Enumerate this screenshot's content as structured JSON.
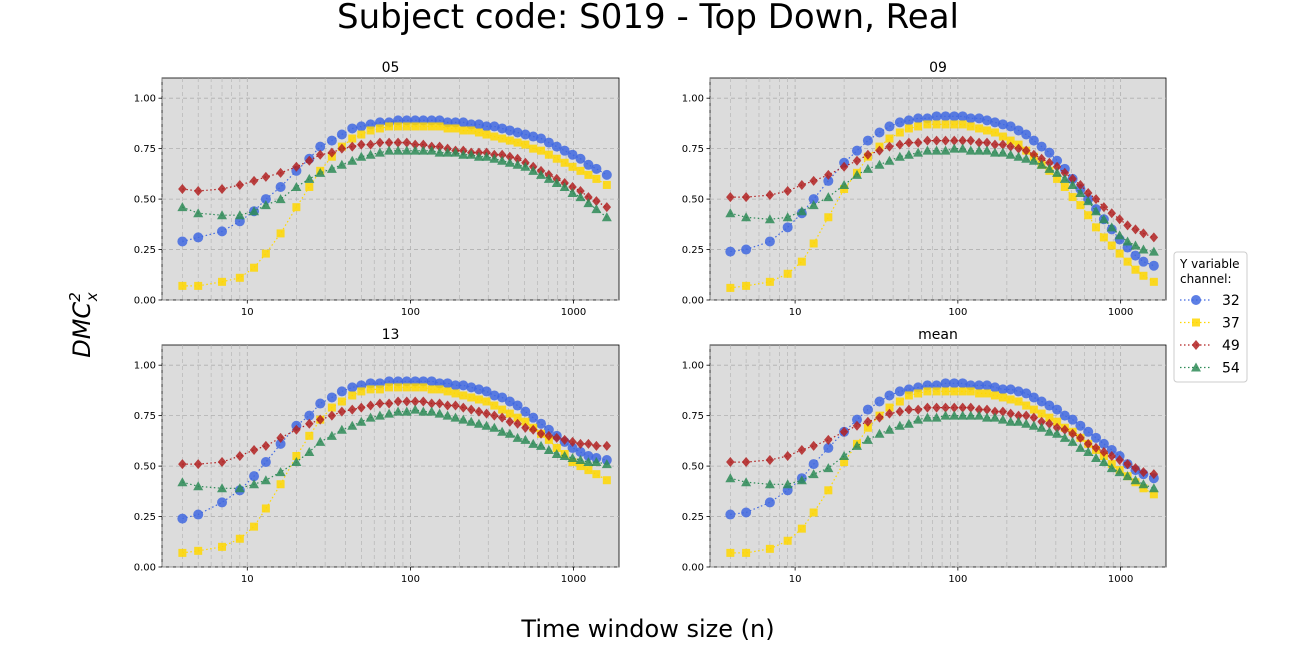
{
  "figure": {
    "title": "Subject code: S019 - Top Down, Real",
    "xlabel": "Time window size (n)",
    "ylabel": "DMC",
    "ylabel_sup": "2",
    "ylabel_sub": "x"
  },
  "legend": {
    "title_line1": "Y variable",
    "title_line2": "channel:",
    "placement": "right-center",
    "entries": [
      {
        "name": "32",
        "color": "#4169e1",
        "marker": "circle"
      },
      {
        "name": "37",
        "color": "#ffd700",
        "marker": "square"
      },
      {
        "name": "49",
        "color": "#b22222",
        "marker": "diamond"
      },
      {
        "name": "54",
        "color": "#2e8b57",
        "marker": "triangle"
      }
    ]
  },
  "chart_data": [
    {
      "type": "line",
      "title": "05",
      "xscale": "log",
      "xlim": [
        3,
        1900
      ],
      "ylim": [
        0,
        1.1
      ],
      "yticks": [
        "0.00",
        "0.25",
        "0.50",
        "0.75",
        "1.00"
      ],
      "xticks": [
        "10",
        "100",
        "1000"
      ],
      "grid": true,
      "x": [
        4,
        5,
        7,
        9,
        11,
        13,
        16,
        20,
        24,
        28,
        33,
        38,
        44,
        50,
        57,
        65,
        74,
        84,
        95,
        107,
        120,
        135,
        151,
        169,
        189,
        211,
        236,
        263,
        293,
        327,
        365,
        407,
        454,
        507,
        566,
        632,
        706,
        789,
        882,
        986,
        1103,
        1234,
        1381,
        1600
      ],
      "series": [
        {
          "name": "32",
          "values": [
            0.29,
            0.31,
            0.34,
            0.39,
            0.44,
            0.5,
            0.56,
            0.64,
            0.7,
            0.76,
            0.79,
            0.82,
            0.85,
            0.86,
            0.87,
            0.88,
            0.88,
            0.89,
            0.89,
            0.89,
            0.89,
            0.89,
            0.89,
            0.88,
            0.88,
            0.88,
            0.87,
            0.87,
            0.86,
            0.86,
            0.85,
            0.84,
            0.83,
            0.82,
            0.81,
            0.8,
            0.78,
            0.76,
            0.74,
            0.72,
            0.7,
            0.67,
            0.65,
            0.62
          ]
        },
        {
          "name": "37",
          "values": [
            0.07,
            0.07,
            0.09,
            0.11,
            0.16,
            0.23,
            0.33,
            0.46,
            0.56,
            0.64,
            0.71,
            0.76,
            0.8,
            0.82,
            0.84,
            0.85,
            0.86,
            0.86,
            0.86,
            0.86,
            0.86,
            0.86,
            0.86,
            0.85,
            0.85,
            0.84,
            0.84,
            0.83,
            0.82,
            0.81,
            0.8,
            0.79,
            0.78,
            0.77,
            0.75,
            0.74,
            0.72,
            0.7,
            0.68,
            0.66,
            0.64,
            0.62,
            0.6,
            0.57
          ]
        },
        {
          "name": "49",
          "values": [
            0.55,
            0.54,
            0.55,
            0.57,
            0.59,
            0.61,
            0.63,
            0.66,
            0.69,
            0.72,
            0.73,
            0.75,
            0.76,
            0.77,
            0.77,
            0.78,
            0.78,
            0.78,
            0.78,
            0.77,
            0.77,
            0.76,
            0.76,
            0.75,
            0.74,
            0.74,
            0.73,
            0.73,
            0.73,
            0.72,
            0.72,
            0.71,
            0.7,
            0.68,
            0.66,
            0.64,
            0.62,
            0.6,
            0.58,
            0.56,
            0.54,
            0.51,
            0.49,
            0.46
          ]
        },
        {
          "name": "54",
          "values": [
            0.46,
            0.43,
            0.42,
            0.42,
            0.44,
            0.47,
            0.5,
            0.56,
            0.6,
            0.63,
            0.65,
            0.67,
            0.69,
            0.71,
            0.72,
            0.73,
            0.74,
            0.74,
            0.74,
            0.74,
            0.74,
            0.74,
            0.73,
            0.73,
            0.73,
            0.72,
            0.72,
            0.71,
            0.71,
            0.7,
            0.69,
            0.68,
            0.67,
            0.66,
            0.64,
            0.62,
            0.6,
            0.58,
            0.56,
            0.53,
            0.51,
            0.48,
            0.45,
            0.41
          ]
        }
      ]
    },
    {
      "type": "line",
      "title": "09",
      "xscale": "log",
      "xlim": [
        3,
        1900
      ],
      "ylim": [
        0,
        1.1
      ],
      "yticks": [
        "0.00",
        "0.25",
        "0.50",
        "0.75",
        "1.00"
      ],
      "xticks": [
        "10",
        "100",
        "1000"
      ],
      "grid": true,
      "x": [
        4,
        5,
        7,
        9,
        11,
        13,
        16,
        20,
        24,
        28,
        33,
        38,
        44,
        50,
        57,
        65,
        74,
        84,
        95,
        107,
        120,
        135,
        151,
        169,
        189,
        211,
        236,
        263,
        293,
        327,
        365,
        407,
        454,
        507,
        566,
        632,
        706,
        789,
        882,
        986,
        1103,
        1234,
        1381,
        1600
      ],
      "series": [
        {
          "name": "32",
          "values": [
            0.24,
            0.25,
            0.29,
            0.36,
            0.43,
            0.5,
            0.59,
            0.68,
            0.74,
            0.79,
            0.83,
            0.86,
            0.88,
            0.89,
            0.9,
            0.9,
            0.91,
            0.91,
            0.91,
            0.91,
            0.9,
            0.9,
            0.89,
            0.88,
            0.87,
            0.86,
            0.84,
            0.82,
            0.79,
            0.76,
            0.73,
            0.69,
            0.65,
            0.6,
            0.55,
            0.5,
            0.45,
            0.4,
            0.35,
            0.3,
            0.26,
            0.22,
            0.19,
            0.17
          ]
        },
        {
          "name": "37",
          "values": [
            0.06,
            0.07,
            0.09,
            0.13,
            0.19,
            0.28,
            0.41,
            0.55,
            0.63,
            0.71,
            0.76,
            0.8,
            0.83,
            0.85,
            0.86,
            0.87,
            0.87,
            0.87,
            0.87,
            0.87,
            0.86,
            0.85,
            0.84,
            0.83,
            0.81,
            0.79,
            0.77,
            0.74,
            0.71,
            0.67,
            0.64,
            0.6,
            0.56,
            0.51,
            0.47,
            0.42,
            0.36,
            0.31,
            0.27,
            0.23,
            0.19,
            0.15,
            0.12,
            0.09
          ]
        },
        {
          "name": "49",
          "values": [
            0.51,
            0.51,
            0.52,
            0.54,
            0.57,
            0.59,
            0.62,
            0.66,
            0.69,
            0.72,
            0.74,
            0.76,
            0.77,
            0.78,
            0.78,
            0.79,
            0.79,
            0.79,
            0.79,
            0.79,
            0.79,
            0.78,
            0.78,
            0.77,
            0.77,
            0.76,
            0.75,
            0.74,
            0.72,
            0.7,
            0.68,
            0.66,
            0.63,
            0.6,
            0.57,
            0.53,
            0.5,
            0.46,
            0.43,
            0.4,
            0.37,
            0.35,
            0.33,
            0.31
          ]
        },
        {
          "name": "54",
          "values": [
            0.43,
            0.41,
            0.4,
            0.41,
            0.44,
            0.47,
            0.51,
            0.57,
            0.62,
            0.65,
            0.67,
            0.69,
            0.71,
            0.72,
            0.73,
            0.74,
            0.74,
            0.74,
            0.75,
            0.75,
            0.74,
            0.74,
            0.74,
            0.73,
            0.73,
            0.72,
            0.71,
            0.7,
            0.69,
            0.67,
            0.65,
            0.63,
            0.6,
            0.57,
            0.53,
            0.49,
            0.44,
            0.4,
            0.36,
            0.32,
            0.29,
            0.27,
            0.25,
            0.24
          ]
        }
      ]
    },
    {
      "type": "line",
      "title": "13",
      "xscale": "log",
      "xlim": [
        3,
        1900
      ],
      "ylim": [
        0,
        1.1
      ],
      "yticks": [
        "0.00",
        "0.25",
        "0.50",
        "0.75",
        "1.00"
      ],
      "xticks": [
        "10",
        "100",
        "1000"
      ],
      "grid": true,
      "x": [
        4,
        5,
        7,
        9,
        11,
        13,
        16,
        20,
        24,
        28,
        33,
        38,
        44,
        50,
        57,
        65,
        74,
        84,
        95,
        107,
        120,
        135,
        151,
        169,
        189,
        211,
        236,
        263,
        293,
        327,
        365,
        407,
        454,
        507,
        566,
        632,
        706,
        789,
        882,
        986,
        1103,
        1234,
        1381,
        1600
      ],
      "series": [
        {
          "name": "32",
          "values": [
            0.24,
            0.26,
            0.32,
            0.38,
            0.45,
            0.52,
            0.61,
            0.7,
            0.75,
            0.81,
            0.84,
            0.87,
            0.89,
            0.9,
            0.91,
            0.91,
            0.92,
            0.92,
            0.92,
            0.92,
            0.92,
            0.92,
            0.91,
            0.91,
            0.9,
            0.9,
            0.89,
            0.88,
            0.87,
            0.85,
            0.84,
            0.82,
            0.8,
            0.77,
            0.74,
            0.71,
            0.68,
            0.65,
            0.62,
            0.59,
            0.57,
            0.55,
            0.54,
            0.53
          ]
        },
        {
          "name": "37",
          "values": [
            0.07,
            0.08,
            0.1,
            0.14,
            0.2,
            0.29,
            0.41,
            0.55,
            0.65,
            0.73,
            0.79,
            0.82,
            0.85,
            0.87,
            0.88,
            0.88,
            0.89,
            0.89,
            0.89,
            0.89,
            0.89,
            0.88,
            0.88,
            0.87,
            0.86,
            0.85,
            0.84,
            0.83,
            0.82,
            0.8,
            0.78,
            0.76,
            0.74,
            0.72,
            0.69,
            0.66,
            0.63,
            0.59,
            0.56,
            0.52,
            0.5,
            0.48,
            0.46,
            0.43
          ]
        },
        {
          "name": "49",
          "values": [
            0.51,
            0.51,
            0.52,
            0.55,
            0.58,
            0.6,
            0.64,
            0.68,
            0.71,
            0.73,
            0.75,
            0.77,
            0.78,
            0.79,
            0.8,
            0.81,
            0.81,
            0.82,
            0.82,
            0.82,
            0.82,
            0.81,
            0.81,
            0.8,
            0.8,
            0.79,
            0.78,
            0.77,
            0.76,
            0.75,
            0.74,
            0.72,
            0.71,
            0.69,
            0.68,
            0.66,
            0.65,
            0.64,
            0.63,
            0.62,
            0.61,
            0.61,
            0.6,
            0.6
          ]
        },
        {
          "name": "54",
          "values": [
            0.42,
            0.4,
            0.39,
            0.39,
            0.41,
            0.43,
            0.47,
            0.52,
            0.57,
            0.62,
            0.65,
            0.68,
            0.7,
            0.72,
            0.74,
            0.75,
            0.76,
            0.77,
            0.77,
            0.78,
            0.77,
            0.77,
            0.76,
            0.75,
            0.74,
            0.73,
            0.72,
            0.71,
            0.7,
            0.69,
            0.67,
            0.66,
            0.64,
            0.63,
            0.61,
            0.6,
            0.58,
            0.56,
            0.55,
            0.54,
            0.53,
            0.52,
            0.52,
            0.51
          ]
        }
      ]
    },
    {
      "type": "line",
      "title": "mean",
      "xscale": "log",
      "xlim": [
        3,
        1900
      ],
      "ylim": [
        0,
        1.1
      ],
      "yticks": [
        "0.00",
        "0.25",
        "0.50",
        "0.75",
        "1.00"
      ],
      "xticks": [
        "10",
        "100",
        "1000"
      ],
      "grid": true,
      "x": [
        4,
        5,
        7,
        9,
        11,
        13,
        16,
        20,
        24,
        28,
        33,
        38,
        44,
        50,
        57,
        65,
        74,
        84,
        95,
        107,
        120,
        135,
        151,
        169,
        189,
        211,
        236,
        263,
        293,
        327,
        365,
        407,
        454,
        507,
        566,
        632,
        706,
        789,
        882,
        986,
        1103,
        1234,
        1381,
        1600
      ],
      "series": [
        {
          "name": "32",
          "values": [
            0.26,
            0.27,
            0.32,
            0.38,
            0.44,
            0.51,
            0.59,
            0.67,
            0.73,
            0.78,
            0.82,
            0.85,
            0.87,
            0.88,
            0.89,
            0.9,
            0.9,
            0.91,
            0.91,
            0.91,
            0.9,
            0.9,
            0.9,
            0.89,
            0.88,
            0.88,
            0.87,
            0.86,
            0.84,
            0.82,
            0.8,
            0.78,
            0.75,
            0.73,
            0.7,
            0.67,
            0.64,
            0.61,
            0.58,
            0.55,
            0.51,
            0.48,
            0.46,
            0.44
          ]
        },
        {
          "name": "37",
          "values": [
            0.07,
            0.07,
            0.09,
            0.13,
            0.19,
            0.27,
            0.38,
            0.52,
            0.61,
            0.69,
            0.75,
            0.79,
            0.82,
            0.85,
            0.86,
            0.87,
            0.87,
            0.87,
            0.87,
            0.87,
            0.87,
            0.86,
            0.86,
            0.85,
            0.84,
            0.83,
            0.82,
            0.8,
            0.78,
            0.76,
            0.74,
            0.72,
            0.69,
            0.67,
            0.64,
            0.61,
            0.58,
            0.55,
            0.51,
            0.48,
            0.45,
            0.42,
            0.39,
            0.36
          ]
        },
        {
          "name": "49",
          "values": [
            0.52,
            0.52,
            0.53,
            0.55,
            0.58,
            0.6,
            0.63,
            0.67,
            0.7,
            0.72,
            0.74,
            0.76,
            0.77,
            0.78,
            0.78,
            0.79,
            0.79,
            0.79,
            0.79,
            0.79,
            0.79,
            0.78,
            0.78,
            0.77,
            0.77,
            0.76,
            0.75,
            0.75,
            0.74,
            0.72,
            0.71,
            0.69,
            0.68,
            0.66,
            0.64,
            0.61,
            0.59,
            0.57,
            0.55,
            0.53,
            0.51,
            0.49,
            0.47,
            0.46
          ]
        },
        {
          "name": "54",
          "values": [
            0.44,
            0.42,
            0.41,
            0.41,
            0.43,
            0.46,
            0.49,
            0.55,
            0.6,
            0.63,
            0.66,
            0.68,
            0.7,
            0.71,
            0.73,
            0.74,
            0.74,
            0.75,
            0.75,
            0.75,
            0.75,
            0.75,
            0.74,
            0.74,
            0.73,
            0.72,
            0.72,
            0.71,
            0.7,
            0.69,
            0.67,
            0.66,
            0.64,
            0.62,
            0.59,
            0.57,
            0.54,
            0.52,
            0.49,
            0.47,
            0.45,
            0.43,
            0.41,
            0.39
          ]
        }
      ]
    }
  ]
}
